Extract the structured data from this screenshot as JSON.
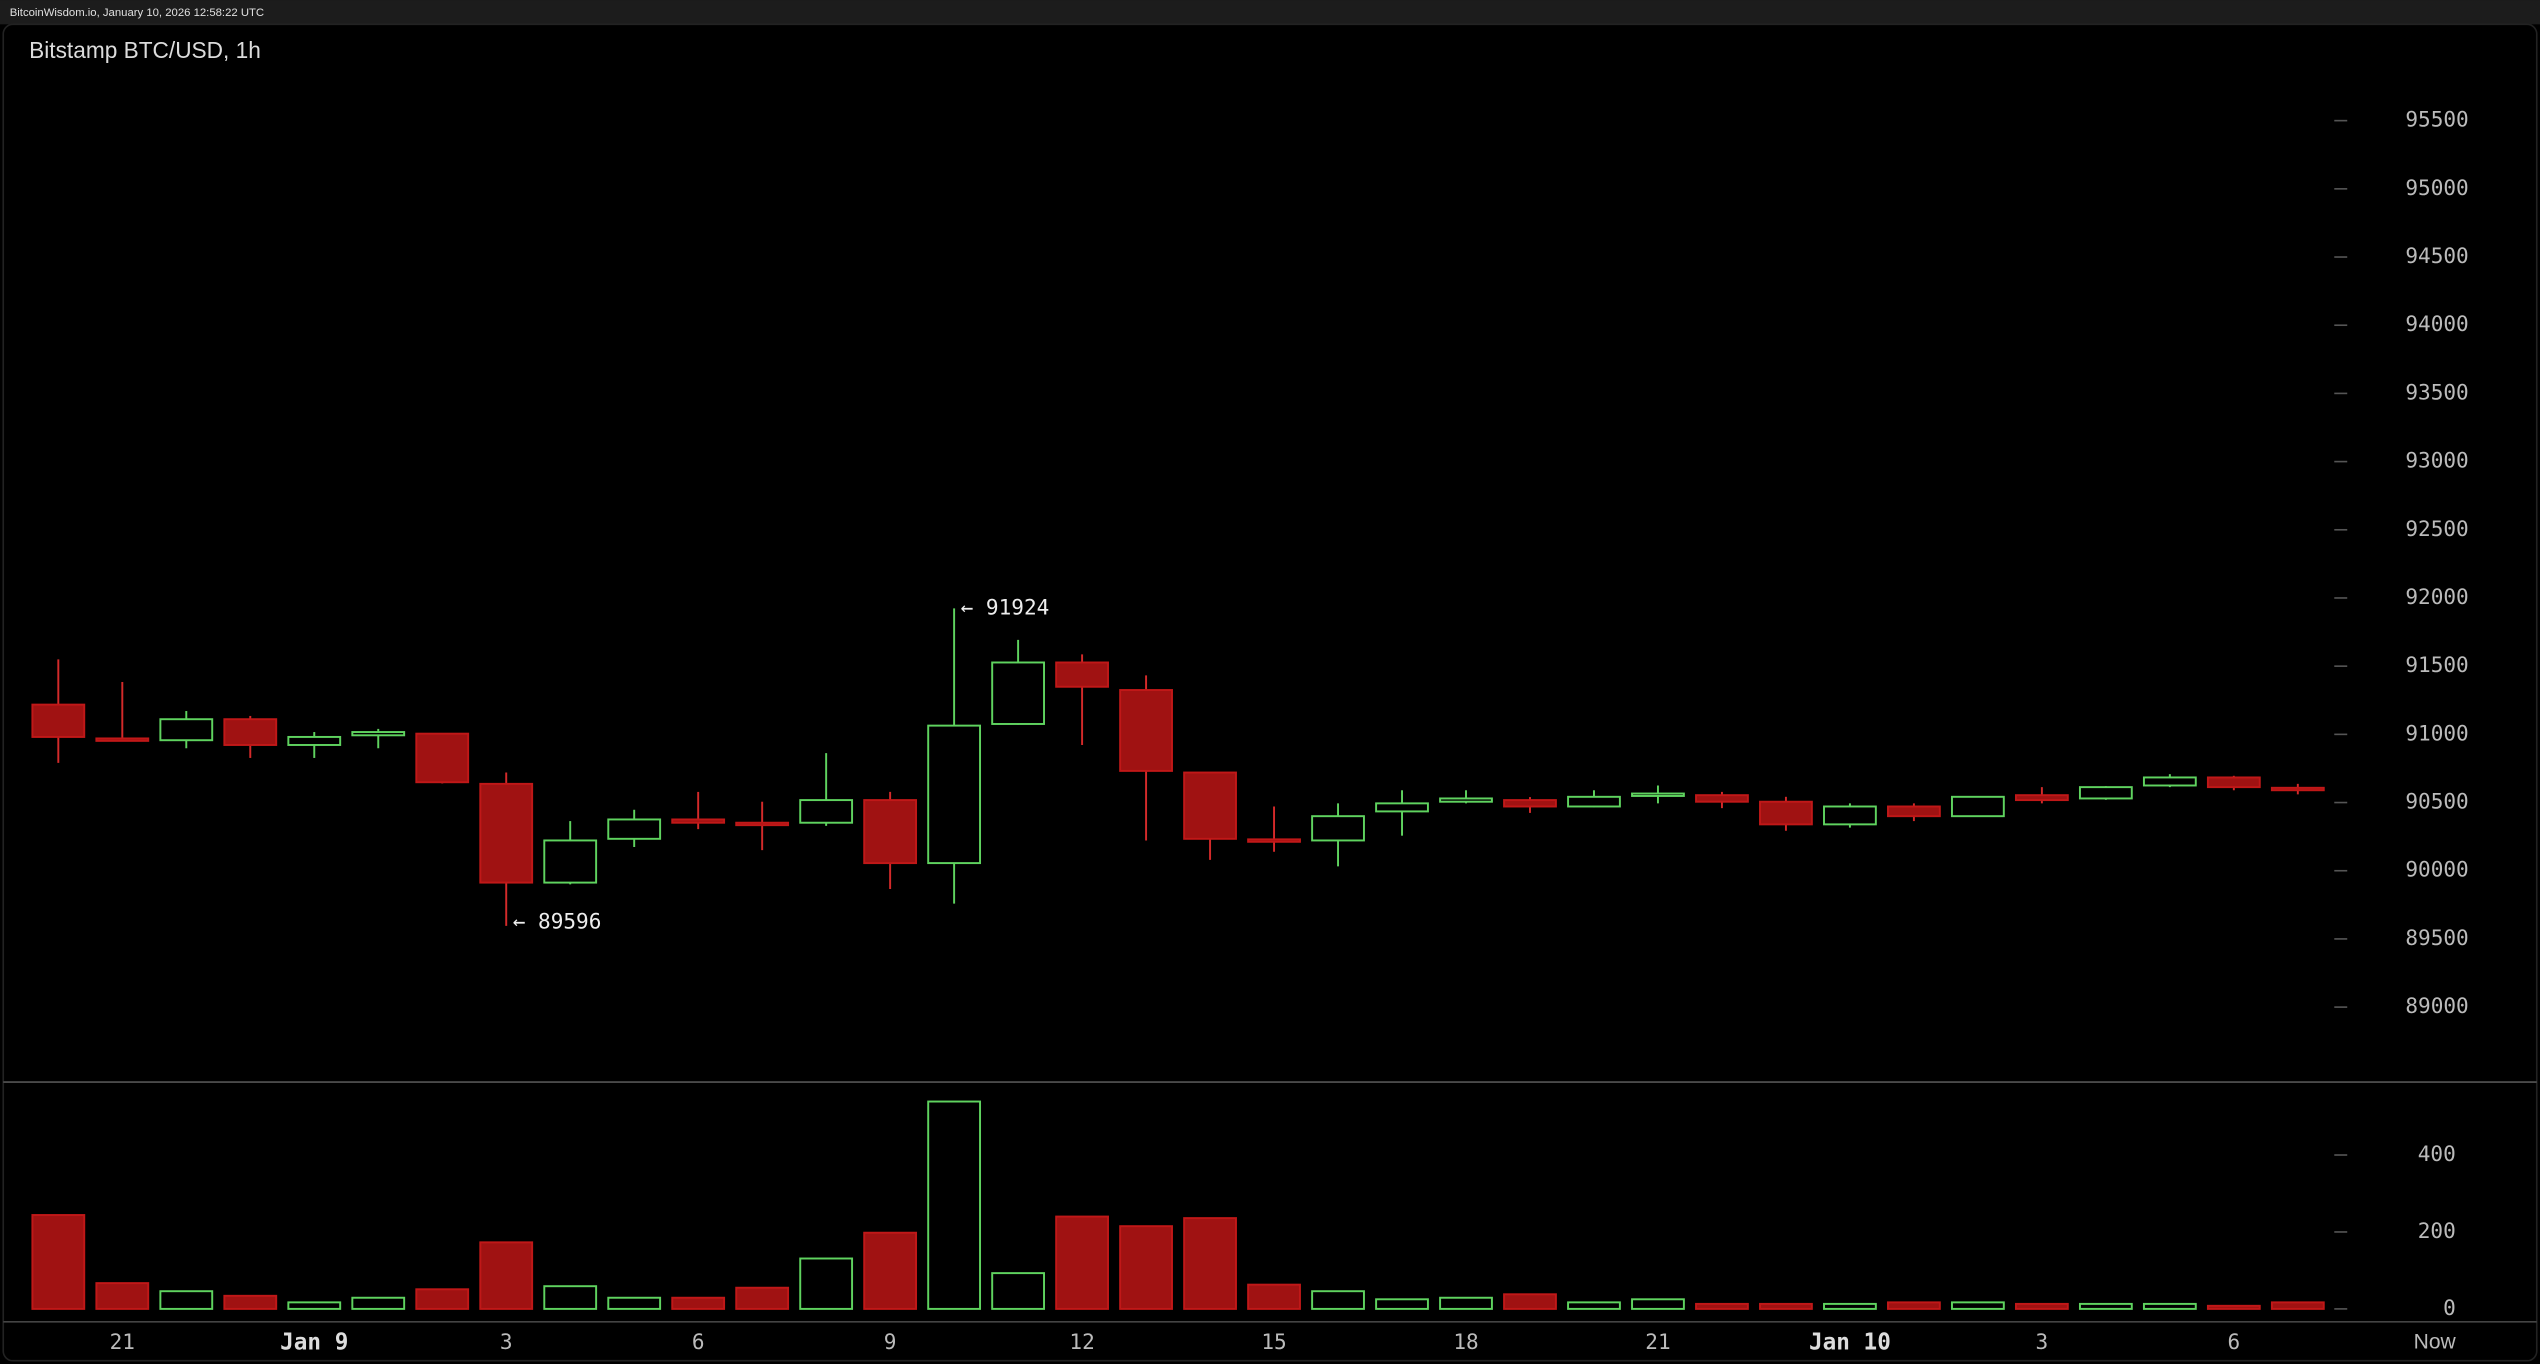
{
  "header": "BitcoinWisdom.io, January 10, 2026 12:58:22 UTC",
  "chart_data": {
    "type": "candlestick",
    "title": "Bitstamp BTC/USD, 1h",
    "categories": [
      null,
      "21",
      null,
      null,
      "Jan 9",
      null,
      null,
      "3",
      null,
      null,
      "6",
      null,
      null,
      "9",
      null,
      null,
      "12",
      null,
      null,
      "15",
      null,
      null,
      "18",
      null,
      null,
      "21",
      null,
      null,
      "Jan 10",
      null,
      null,
      "3",
      null,
      null,
      "6",
      null
    ],
    "x_end_label": "Now",
    "open": [
      91218,
      90970,
      90957,
      91111,
      90922,
      90993,
      91005,
      90637,
      89913,
      90234,
      90376,
      90352,
      90352,
      90518,
      90056,
      91076,
      91527,
      91325,
      90720,
      90230,
      90222,
      90435,
      90506,
      90518,
      90471,
      90554,
      90554,
      90506,
      90340,
      90471,
      90400,
      90554,
      90530,
      90625,
      90684,
      90608
    ],
    "high": [
      91550,
      91384,
      91171,
      91135,
      91017,
      91040,
      91010,
      90720,
      90364,
      90447,
      90578,
      90506,
      90862,
      90578,
      91924,
      91693,
      91586,
      91432,
      90720,
      90471,
      90494,
      90590,
      90590,
      90540,
      90590,
      90625,
      90578,
      90542,
      90494,
      90494,
      90545,
      90613,
      90620,
      90708,
      90696,
      90637
    ],
    "low": [
      90791,
      90950,
      90898,
      90827,
      90827,
      90898,
      90640,
      89596,
      89900,
      90174,
      90305,
      90151,
      90329,
      89866,
      89759,
      91070,
      90922,
      90222,
      90080,
      90139,
      90032,
      90257,
      90494,
      90424,
      90465,
      90494,
      90459,
      90293,
      90316,
      90364,
      90395,
      90494,
      90520,
      90613,
      90590,
      90560
    ],
    "close": [
      90981,
      90955,
      91111,
      90922,
      90981,
      91017,
      90649,
      89913,
      90222,
      90376,
      90352,
      90340,
      90518,
      90056,
      91064,
      91527,
      91349,
      90732,
      90234,
      90220,
      90400,
      90494,
      90530,
      90471,
      90542,
      90566,
      90506,
      90340,
      90471,
      90400,
      90542,
      90518,
      90613,
      90684,
      90613,
      90596
    ],
    "volume": [
      244,
      67,
      46,
      34,
      17,
      29,
      51,
      173,
      59,
      29,
      29,
      55,
      131,
      198,
      539,
      93,
      240,
      215,
      236,
      63,
      46,
      25,
      29,
      38,
      17,
      25,
      13,
      13,
      13,
      17,
      17,
      13,
      13,
      13,
      8,
      17
    ],
    "up_color": "#5fd35f",
    "down_color": "#a01212",
    "ylim": [
      88450,
      95850
    ],
    "yticks": [
      89000,
      89500,
      90000,
      90500,
      91000,
      91500,
      92000,
      92500,
      93000,
      93500,
      94000,
      94500,
      95000,
      95500
    ],
    "volume_ylim": [
      0,
      560
    ],
    "volume_yticks": [
      0,
      200,
      400
    ],
    "annotations": [
      {
        "value": 91924,
        "label": "← 91924"
      },
      {
        "value": 89596,
        "label": "← 89596"
      }
    ]
  }
}
